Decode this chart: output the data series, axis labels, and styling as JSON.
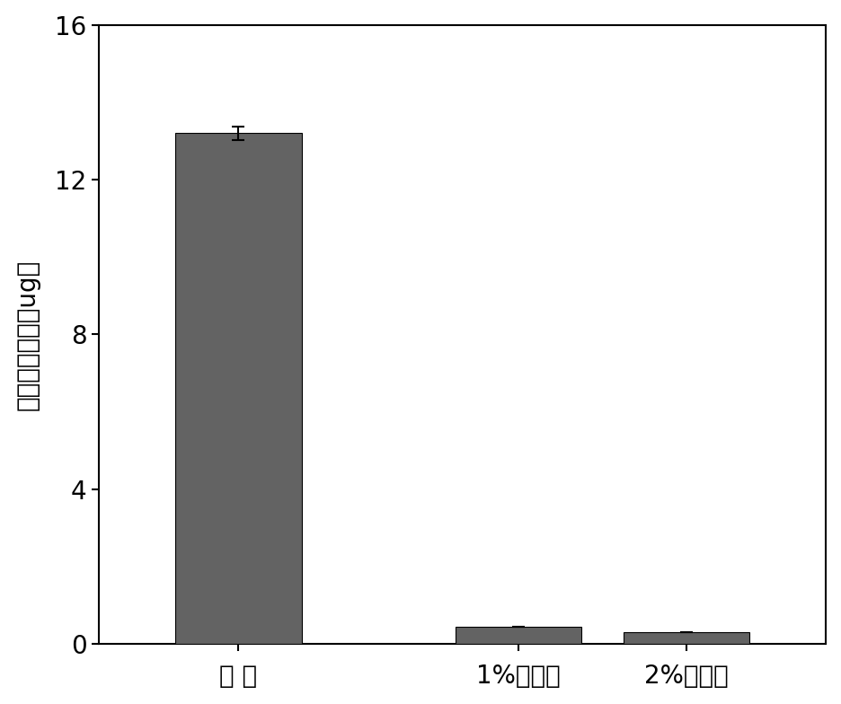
{
  "categories": [
    "对 照",
    "1%生物炭",
    "2%生物炭"
  ],
  "values": [
    13.2,
    0.45,
    0.3
  ],
  "errors": [
    0.18,
    0.0,
    0.0
  ],
  "bar_color": "#636363",
  "bar_edgecolor": "#000000",
  "ylabel": "三氯苯挥发量（ug）",
  "ylim": [
    0,
    16
  ],
  "yticks": [
    0,
    4,
    8,
    12,
    16
  ],
  "bar_width": 0.45,
  "figsize": [
    9.36,
    7.84
  ],
  "dpi": 100,
  "background_color": "#ffffff",
  "spine_color": "#000000",
  "tick_fontsize": 20,
  "ylabel_fontsize": 20,
  "xlabel_fontsize": 20,
  "error_capsize": 5,
  "error_linewidth": 1.5,
  "error_color": "#000000",
  "bar_positions": [
    0,
    1,
    1.6
  ]
}
